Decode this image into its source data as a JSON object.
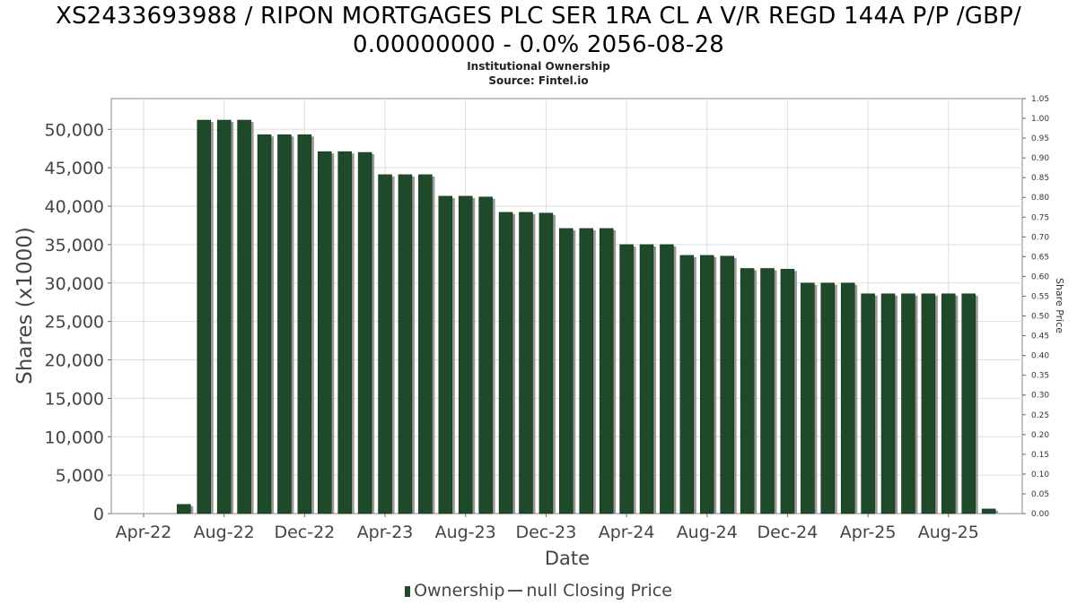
{
  "title_line1": "XS2433693988 / RIPON MORTGAGES PLC SER 1RA CL A V/R REGD 144A P/P /GBP/",
  "title_line2": "0.00000000 - 0.0% 2056-08-28",
  "subtitle1": "Institutional Ownership",
  "subtitle2": "Source: Fintel.io",
  "legend": {
    "ownership_label": "Ownership",
    "price_label": "null Closing Price"
  },
  "colors": {
    "bar": "#1e4a2a",
    "bar_shadow": "#999999",
    "grid": "#dddddd"
  },
  "chart_data": {
    "type": "bar",
    "xlabel": "Date",
    "ylabel": "Shares (x1000)",
    "y2label": "Share Price",
    "ylim": [
      0,
      54000
    ],
    "y2lim": [
      0,
      1.05
    ],
    "grid": true,
    "legend_position": "bottom",
    "x_ticks": [
      "Apr-22",
      "Aug-22",
      "Dec-22",
      "Apr-23",
      "Aug-23",
      "Dec-23",
      "Apr-24",
      "Aug-24",
      "Dec-24",
      "Apr-25",
      "Aug-25"
    ],
    "y_ticks": [
      "0",
      "5,000",
      "10,000",
      "15,000",
      "20,000",
      "25,000",
      "30,000",
      "35,000",
      "40,000",
      "45,000",
      "50,000"
    ],
    "y2_ticks": [
      "0.00",
      "0.05",
      "0.10",
      "0.15",
      "0.20",
      "0.25",
      "0.30",
      "0.35",
      "0.40",
      "0.45",
      "0.50",
      "0.55",
      "0.60",
      "0.65",
      "0.70",
      "0.75",
      "0.80",
      "0.85",
      "0.90",
      "0.95",
      "1.00",
      "1.05"
    ],
    "series": [
      {
        "name": "Ownership",
        "values": [
          1200,
          51200,
          51200,
          51200,
          49300,
          49300,
          49300,
          47100,
          47100,
          47000,
          44100,
          44100,
          44100,
          41300,
          41300,
          41200,
          39200,
          39200,
          39100,
          37100,
          37100,
          37100,
          35000,
          35000,
          35000,
          33600,
          33600,
          33500,
          31900,
          31900,
          31800,
          30000,
          30000,
          30000,
          28600,
          28600,
          28600,
          28600,
          28600,
          28600,
          600
        ]
      }
    ]
  }
}
